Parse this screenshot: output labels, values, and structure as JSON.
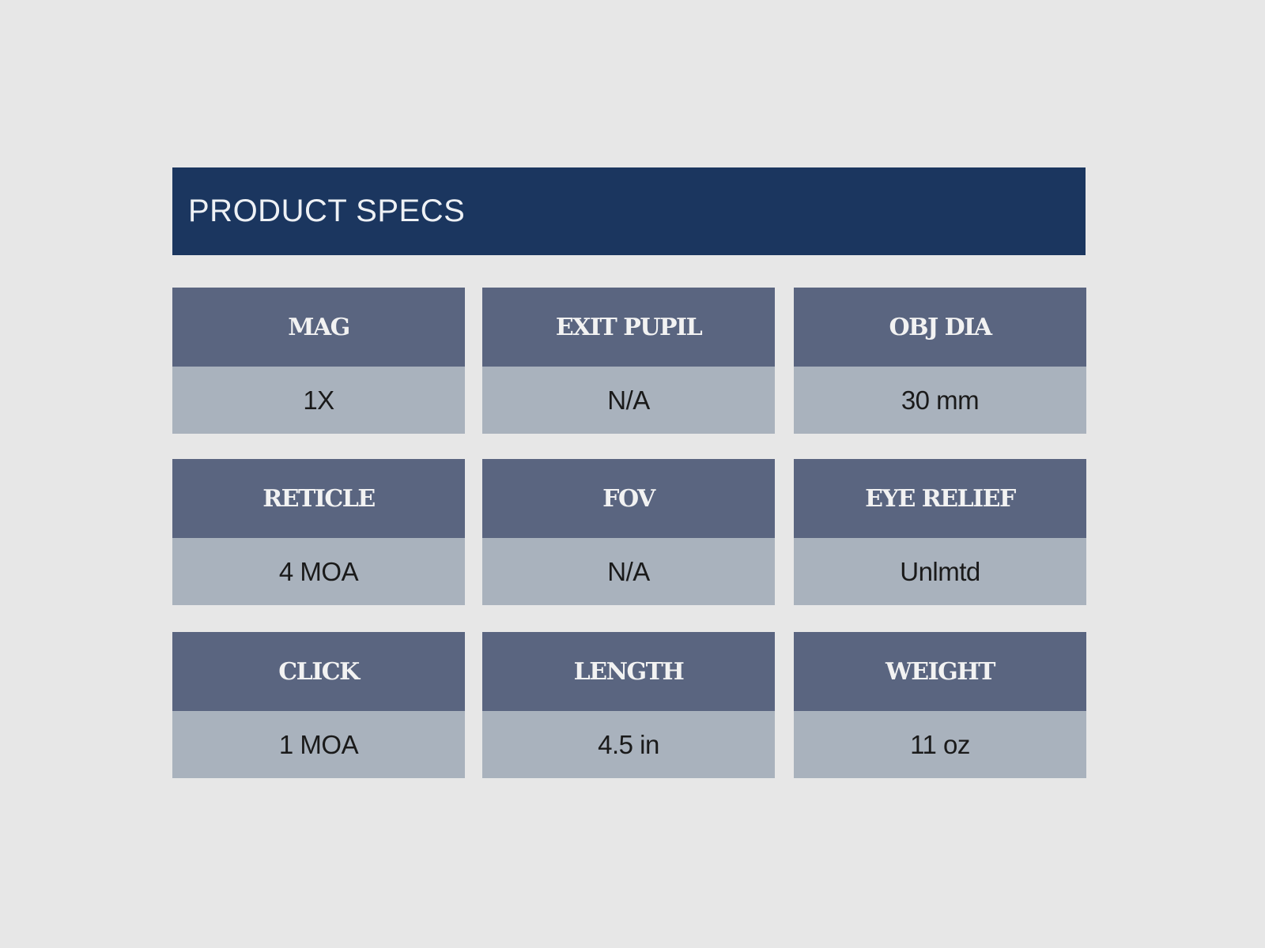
{
  "title": "PRODUCT SPECS",
  "colors": {
    "background": "#e7e7e7",
    "banner": "#1b365f",
    "label_bg": "#5a6580",
    "value_bg": "#a9b2bd"
  },
  "specs": [
    {
      "label": "MAG",
      "value": "1X"
    },
    {
      "label": "EXIT PUPIL",
      "value": "N/A"
    },
    {
      "label": "OBJ DIA",
      "value": "30 mm"
    },
    {
      "label": "RETICLE",
      "value": "4 MOA"
    },
    {
      "label": "FOV",
      "value": "N/A"
    },
    {
      "label": "EYE RELIEF",
      "value": "Unlmtd"
    },
    {
      "label": "CLICK",
      "value": "1 MOA"
    },
    {
      "label": "LENGTH",
      "value": "4.5 in"
    },
    {
      "label": "WEIGHT",
      "value": "11 oz"
    }
  ]
}
